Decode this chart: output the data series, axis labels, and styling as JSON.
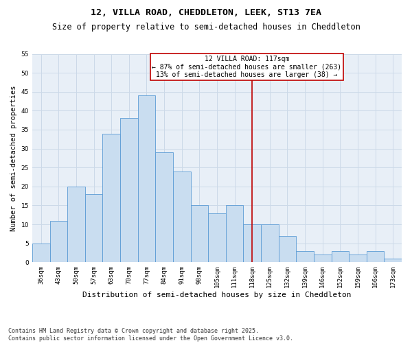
{
  "title": "12, VILLA ROAD, CHEDDLETON, LEEK, ST13 7EA",
  "subtitle": "Size of property relative to semi-detached houses in Cheddleton",
  "xlabel": "Distribution of semi-detached houses by size in Cheddleton",
  "ylabel": "Number of semi-detached properties",
  "bar_labels": [
    "36sqm",
    "43sqm",
    "50sqm",
    "57sqm",
    "63sqm",
    "70sqm",
    "77sqm",
    "84sqm",
    "91sqm",
    "98sqm",
    "105sqm",
    "111sqm",
    "118sqm",
    "125sqm",
    "132sqm",
    "139sqm",
    "146sqm",
    "152sqm",
    "159sqm",
    "166sqm",
    "173sqm"
  ],
  "bar_values": [
    5,
    11,
    20,
    18,
    34,
    38,
    44,
    29,
    24,
    15,
    13,
    15,
    10,
    10,
    7,
    3,
    2,
    3,
    2,
    3,
    1
  ],
  "bar_color": "#c9ddf0",
  "bar_edge_color": "#5b9bd5",
  "vline_x": 12,
  "vline_color": "#c00000",
  "annotation_text": "12 VILLA ROAD: 117sqm\n← 87% of semi-detached houses are smaller (263)\n13% of semi-detached houses are larger (38) →",
  "annotation_box_color": "#c00000",
  "ylim": [
    0,
    55
  ],
  "yticks": [
    0,
    5,
    10,
    15,
    20,
    25,
    30,
    35,
    40,
    45,
    50,
    55
  ],
  "grid_color": "#ccd9e8",
  "bg_color": "#e8eff7",
  "footer_text": "Contains HM Land Registry data © Crown copyright and database right 2025.\nContains public sector information licensed under the Open Government Licence v3.0.",
  "title_fontsize": 9.5,
  "subtitle_fontsize": 8.5,
  "xlabel_fontsize": 8,
  "ylabel_fontsize": 7.5,
  "tick_fontsize": 6.5,
  "annotation_fontsize": 7,
  "footer_fontsize": 6
}
